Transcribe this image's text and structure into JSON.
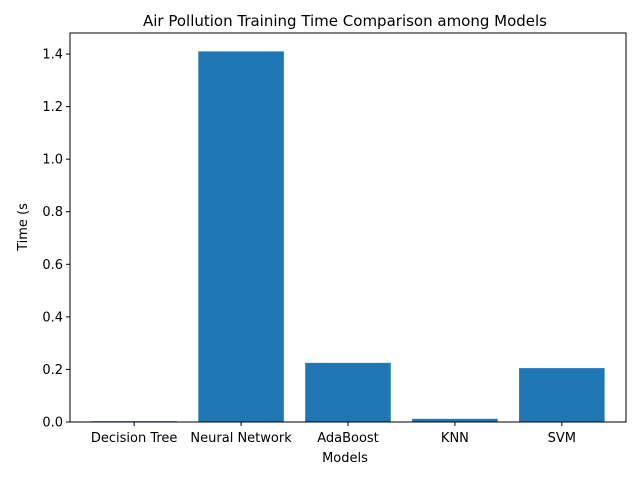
{
  "chart_data": {
    "type": "bar",
    "title": "Air Pollution Training Time Comparison among Models",
    "xlabel": "Models",
    "ylabel": "Time (s",
    "categories": [
      "Decision Tree",
      "Neural Network",
      "AdaBoost",
      "KNN",
      "SVM"
    ],
    "values": [
      0.003,
      1.41,
      0.225,
      0.012,
      0.205
    ],
    "ylim": [
      0,
      1.48
    ],
    "yticks": [
      0.0,
      0.2,
      0.4,
      0.6,
      0.8,
      1.0,
      1.2,
      1.4
    ],
    "ytick_labels": [
      "0.0",
      "0.2",
      "0.4",
      "0.6",
      "0.8",
      "1.0",
      "1.2",
      "1.4"
    ],
    "bar_color": "#1f77b4",
    "grid": false,
    "legend": "none"
  }
}
